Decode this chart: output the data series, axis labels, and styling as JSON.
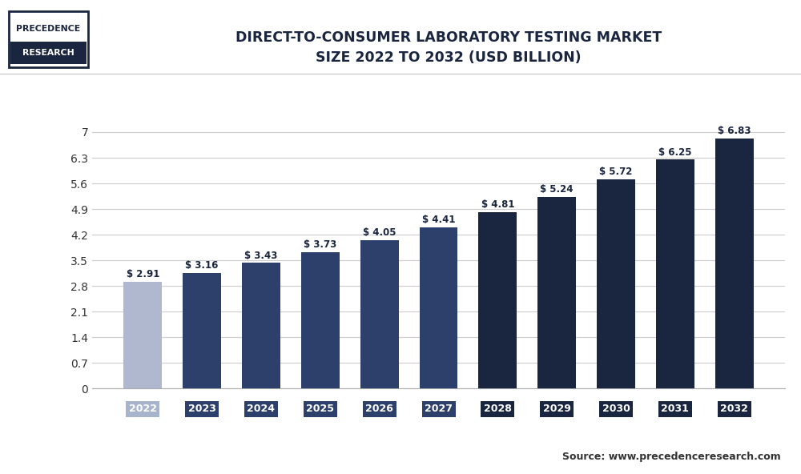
{
  "title_line1": "DIRECT-TO-CONSUMER LABORATORY TESTING MARKET",
  "title_line2": "SIZE 2022 TO 2032 (USD BILLION)",
  "categories": [
    "2022",
    "2023",
    "2024",
    "2025",
    "2026",
    "2027",
    "2028",
    "2029",
    "2030",
    "2031",
    "2032"
  ],
  "values": [
    2.91,
    3.16,
    3.43,
    3.73,
    4.05,
    4.41,
    4.81,
    5.24,
    5.72,
    6.25,
    6.83
  ],
  "bar_colors": [
    "#b0b8d0",
    "#2d3f6b",
    "#2d3f6b",
    "#2d3f6b",
    "#2d3f6b",
    "#2d3f6b",
    "#1a2540",
    "#1a2540",
    "#1a2540",
    "#1a2540",
    "#1a2540"
  ],
  "xtick_bg_colors": [
    "#a8b4cc",
    "#2d3f6b",
    "#2d3f6b",
    "#2d3f6b",
    "#2d3f6b",
    "#2d3f6b",
    "#1a2540",
    "#1a2540",
    "#1a2540",
    "#1a2540",
    "#1a2540"
  ],
  "label_color": "#1a2540",
  "yticks": [
    0,
    0.7,
    1.4,
    2.1,
    2.8,
    3.5,
    4.2,
    4.9,
    5.6,
    6.3,
    7
  ],
  "ylim": [
    0,
    7.5
  ],
  "background_color": "#ffffff",
  "plot_bg_color": "#ffffff",
  "grid_color": "#cccccc",
  "title_color": "#1a2540",
  "source_text": "Source: www.precedenceresearch.com",
  "logo_text1": "PRECEDENCE",
  "logo_text2": "RESEARCH",
  "bar_width": 0.65
}
